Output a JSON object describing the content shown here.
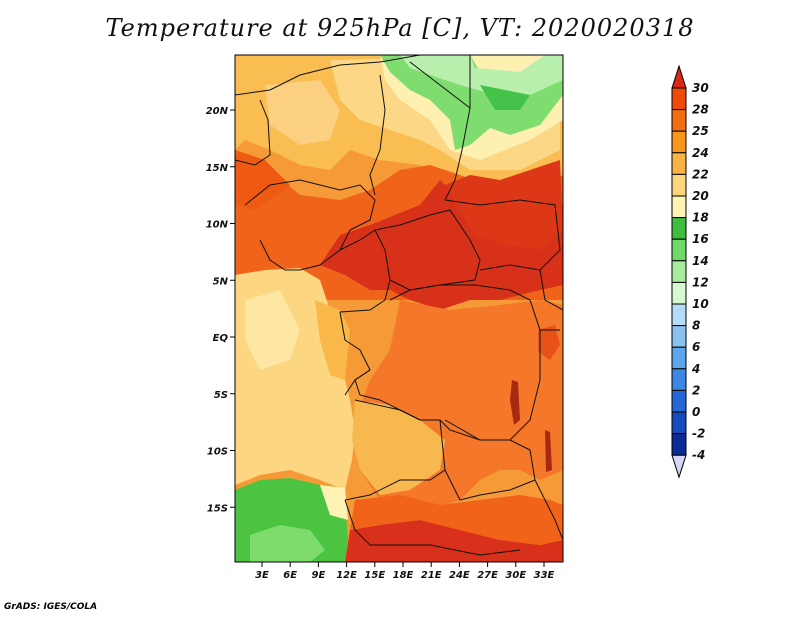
{
  "title": "Temperature at 925hPa [C], VT: 2020020318",
  "credit": "GrADS: IGES/COLA",
  "map": {
    "lat_ticks": [
      {
        "lat": 20,
        "label": "20N"
      },
      {
        "lat": 15,
        "label": "15N"
      },
      {
        "lat": 10,
        "label": "10N"
      },
      {
        "lat": 5,
        "label": "5N"
      },
      {
        "lat": 0,
        "label": "EQ"
      },
      {
        "lat": -5,
        "label": "5S"
      },
      {
        "lat": -10,
        "label": "10S"
      },
      {
        "lat": -15,
        "label": "15S"
      }
    ],
    "lon_ticks": [
      {
        "lon": 3,
        "label": "3E"
      },
      {
        "lon": 6,
        "label": "6E"
      },
      {
        "lon": 9,
        "label": "9E"
      },
      {
        "lon": 12,
        "label": "12E"
      },
      {
        "lon": 15,
        "label": "15E"
      },
      {
        "lon": 18,
        "label": "18E"
      },
      {
        "lon": 21,
        "label": "21E"
      },
      {
        "lon": 24,
        "label": "24E"
      },
      {
        "lon": 27,
        "label": "27E"
      },
      {
        "lon": 30,
        "label": "30E"
      },
      {
        "lon": 33,
        "label": "33E"
      }
    ]
  },
  "colorbar": {
    "levels": [
      {
        "value": "30",
        "color": "#d82815"
      },
      {
        "value": "28",
        "color": "#ee4a08"
      },
      {
        "value": "25",
        "color": "#f36d13"
      },
      {
        "value": "24",
        "color": "#f7951c"
      },
      {
        "value": "22",
        "color": "#f9b344"
      },
      {
        "value": "20",
        "color": "#fcd57d"
      },
      {
        "value": "18",
        "color": "#fdf3b2"
      },
      {
        "value": "16",
        "color": "#3fbe3d"
      },
      {
        "value": "14",
        "color": "#6edb67"
      },
      {
        "value": "12",
        "color": "#a6ee9b"
      },
      {
        "value": "10",
        "color": "#d6f8cf"
      },
      {
        "value": "8",
        "color": "#b4dcf9"
      },
      {
        "value": "6",
        "color": "#8ac2f2"
      },
      {
        "value": "4",
        "color": "#5ea6ec"
      },
      {
        "value": "2",
        "color": "#3c86e4"
      },
      {
        "value": "0",
        "color": "#2468d8"
      },
      {
        "value": "-2",
        "color": "#164bbd"
      },
      {
        "value": "-4",
        "color": "#0c2a96"
      }
    ],
    "top_color": "#d82815",
    "bottom_color": "#d6d9f6"
  }
}
